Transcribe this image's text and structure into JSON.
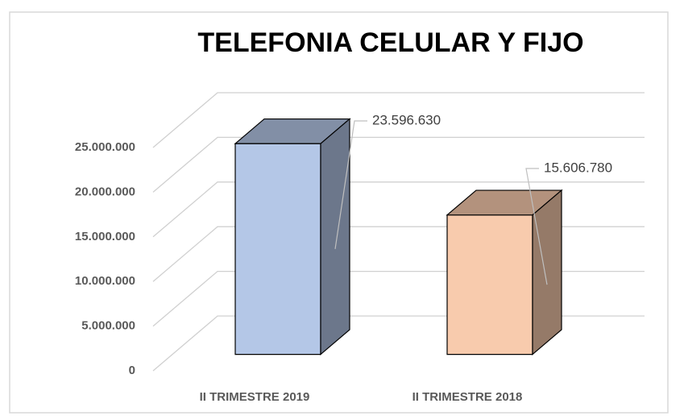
{
  "chart_data": {
    "type": "bar3d",
    "title": "TELEFONIA CELULAR Y FIJO",
    "categories": [
      "II TRIMESTRE 2019",
      "II TRIMESTRE 2018"
    ],
    "values": [
      23596630,
      15606780
    ],
    "value_labels": [
      "23.596.630",
      "15.606.780"
    ],
    "colors": [
      "#b4c7e7",
      "#f8cbad"
    ],
    "ylim": [
      0,
      25000000
    ],
    "yticks": [
      0,
      {
        "value": 5000000,
        "label": "5.000.000"
      },
      {
        "value": 10000000,
        "label": "10.000.000"
      },
      {
        "value": 15000000,
        "label": "15.000.000"
      },
      {
        "value": 20000000,
        "label": "20.000.000"
      },
      {
        "value": 25000000,
        "label": "25.000.000"
      }
    ],
    "grid": true
  }
}
